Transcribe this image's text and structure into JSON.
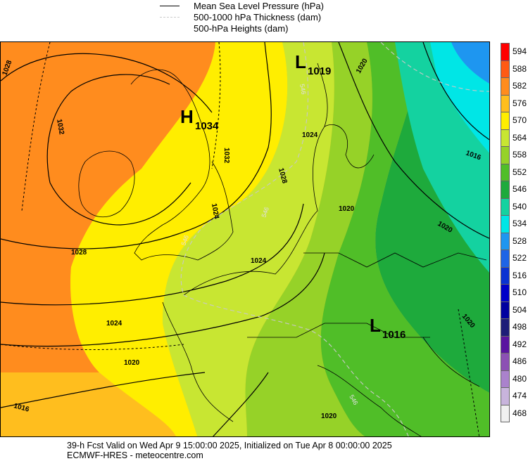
{
  "legend": {
    "mslp": "Mean Sea Level Pressure (hPa)",
    "thickness": "500-1000 hPa Thickness (dam)",
    "heights": "500-hPa Heights (dam)"
  },
  "pressure_centers": [
    {
      "type": "H",
      "value": "1034"
    },
    {
      "type": "L",
      "value": "1019"
    },
    {
      "type": "L",
      "value": "1016"
    }
  ],
  "isobar_labels": [
    "1028",
    "1032",
    "1032",
    "1028",
    "1024",
    "1024",
    "1020",
    "1028",
    "1024",
    "1020",
    "1016",
    "1020",
    "1020",
    "1020",
    "1016",
    "1024",
    "1020"
  ],
  "thickness_labels": [
    "546",
    "546",
    "546",
    "546"
  ],
  "color_scale": {
    "levels": [
      "594",
      "588",
      "582",
      "576",
      "570",
      "564",
      "558",
      "552",
      "546",
      "540",
      "534",
      "528",
      "522",
      "516",
      "510",
      "504",
      "498",
      "492",
      "486",
      "480",
      "474",
      "468"
    ],
    "colors": [
      "#ff0000",
      "#ff5a14",
      "#ff8c1e",
      "#ffbe1e",
      "#ffee00",
      "#c8e632",
      "#96d228",
      "#50be28",
      "#1eaa3c",
      "#14d2a0",
      "#00e6e6",
      "#1e96f0",
      "#1e64e6",
      "#0a32d2",
      "#0000c8",
      "#0000a0",
      "#1e1e78",
      "#5a14a0",
      "#8c50b4",
      "#aa82cc",
      "#c8b4dc",
      "#f0f0f0"
    ]
  },
  "footer": {
    "line1": "39-h Fcst Valid on Wed Apr  9 15:00:00 2025, Initialized on Tue Apr  8 00:00:00 2025",
    "line2": "ECMWF-HRES - meteocentre.com"
  }
}
